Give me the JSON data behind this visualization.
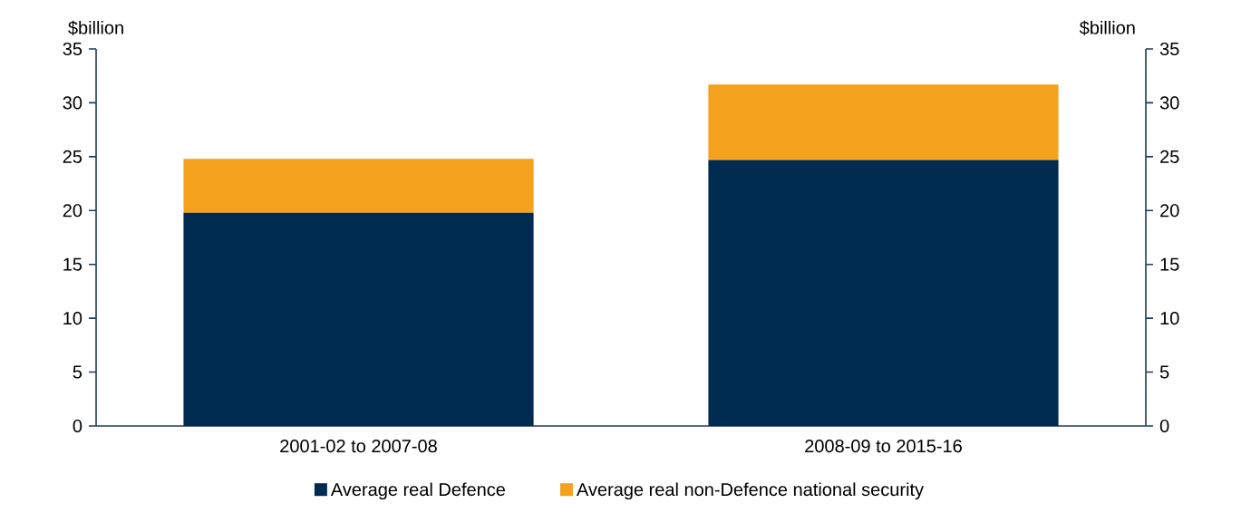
{
  "chart_data": {
    "type": "bar",
    "stacked": true,
    "categories": [
      "2001-02 to 2007-08",
      "2008-09 to 2015-16"
    ],
    "series": [
      {
        "name": "Average real Defence",
        "color": "#002b50",
        "values": [
          19.8,
          24.7
        ]
      },
      {
        "name": "Average real non-Defence national security",
        "color": "#f5a21e",
        "values": [
          5.0,
          7.0
        ]
      }
    ],
    "ylabel": "$billion",
    "y2label": "$billion",
    "ylim": [
      0,
      35
    ],
    "yticks": [
      0,
      5,
      10,
      15,
      20,
      25,
      30,
      35
    ],
    "y2lim": [
      0,
      35
    ],
    "y2ticks": [
      0,
      5,
      10,
      15,
      20,
      25,
      30,
      35
    ],
    "legend": "bottom"
  }
}
